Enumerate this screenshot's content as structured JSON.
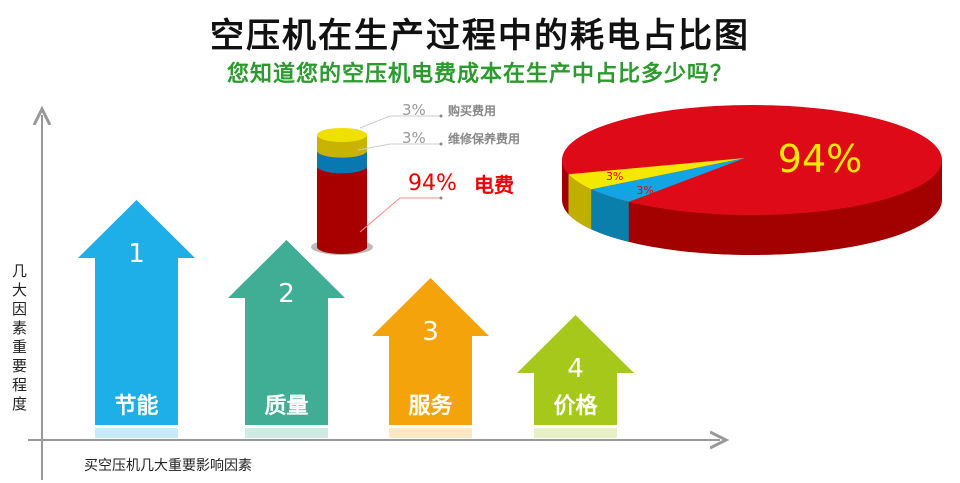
{
  "title": "空压机在生产过程中的耗电占比图",
  "subtitle": "您知道您的空压机电费成本在生产中占比多少吗？",
  "axes": {
    "ylabel": "几大因素重要程度",
    "xlabel": "买空压机几大重要影响因素"
  },
  "factors": [
    {
      "rank": "1",
      "label": "节能",
      "color": "#1eaee8"
    },
    {
      "rank": "2",
      "label": "质量",
      "color": "#3fae94"
    },
    {
      "rank": "3",
      "label": "服务",
      "color": "#f5a30a"
    },
    {
      "rank": "4",
      "label": "价格",
      "color": "#a5c81a"
    }
  ],
  "chart_data": {
    "type": "pie",
    "title": "空压机在生产过程中的耗电占比图",
    "slices": [
      {
        "name": "电费",
        "value": 94,
        "label": "94%",
        "color": "#de0a17"
      },
      {
        "name": "购买费用",
        "value": 3,
        "label": "3%",
        "color": "#f5e800"
      },
      {
        "name": "维修保养费用",
        "value": 3,
        "label": "3%",
        "color": "#12a4e4"
      }
    ]
  }
}
